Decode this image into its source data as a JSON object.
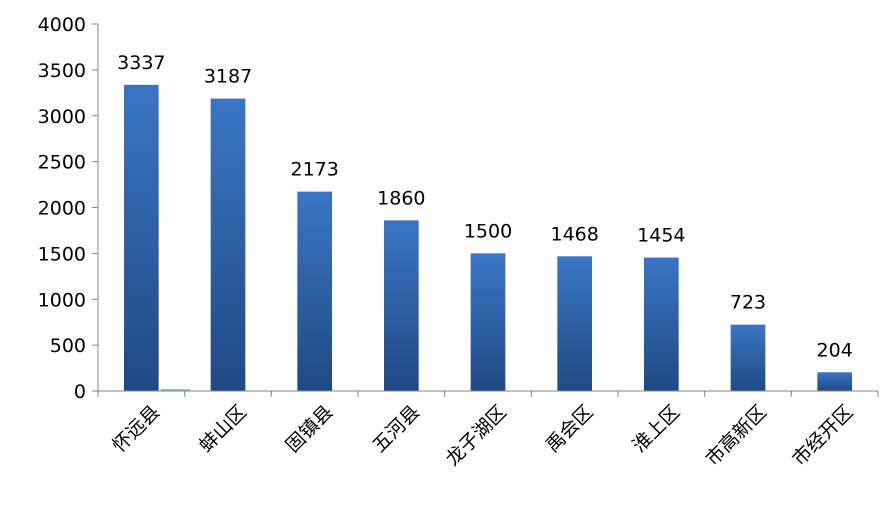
{
  "chart_data": {
    "type": "bar",
    "title": "",
    "xlabel": "",
    "ylabel": "",
    "ylim": [
      0,
      4000
    ],
    "yticks": [
      "0",
      "500",
      "1000",
      "1500",
      "2000",
      "2500",
      "3000",
      "3500",
      "4000"
    ],
    "grid": false,
    "legend": "none",
    "categories": [
      "怀远县",
      "蚌山区",
      "固镇县",
      "五河县",
      "龙子湖区",
      "禹会区",
      "淮上区",
      "市高新区",
      "市经开区"
    ],
    "series": [
      {
        "values": [
          3337,
          3187,
          2173,
          1860,
          1500,
          1468,
          1454,
          723,
          204
        ]
      }
    ],
    "data_labels": [
      "3337",
      "3187",
      "2173",
      "1860",
      "1500",
      "1468",
      "1454",
      "723",
      "204"
    ],
    "colors": {
      "bar_top": "#3a75c4",
      "bar_bottom": "#1f4a84",
      "axis": "#868686"
    }
  }
}
